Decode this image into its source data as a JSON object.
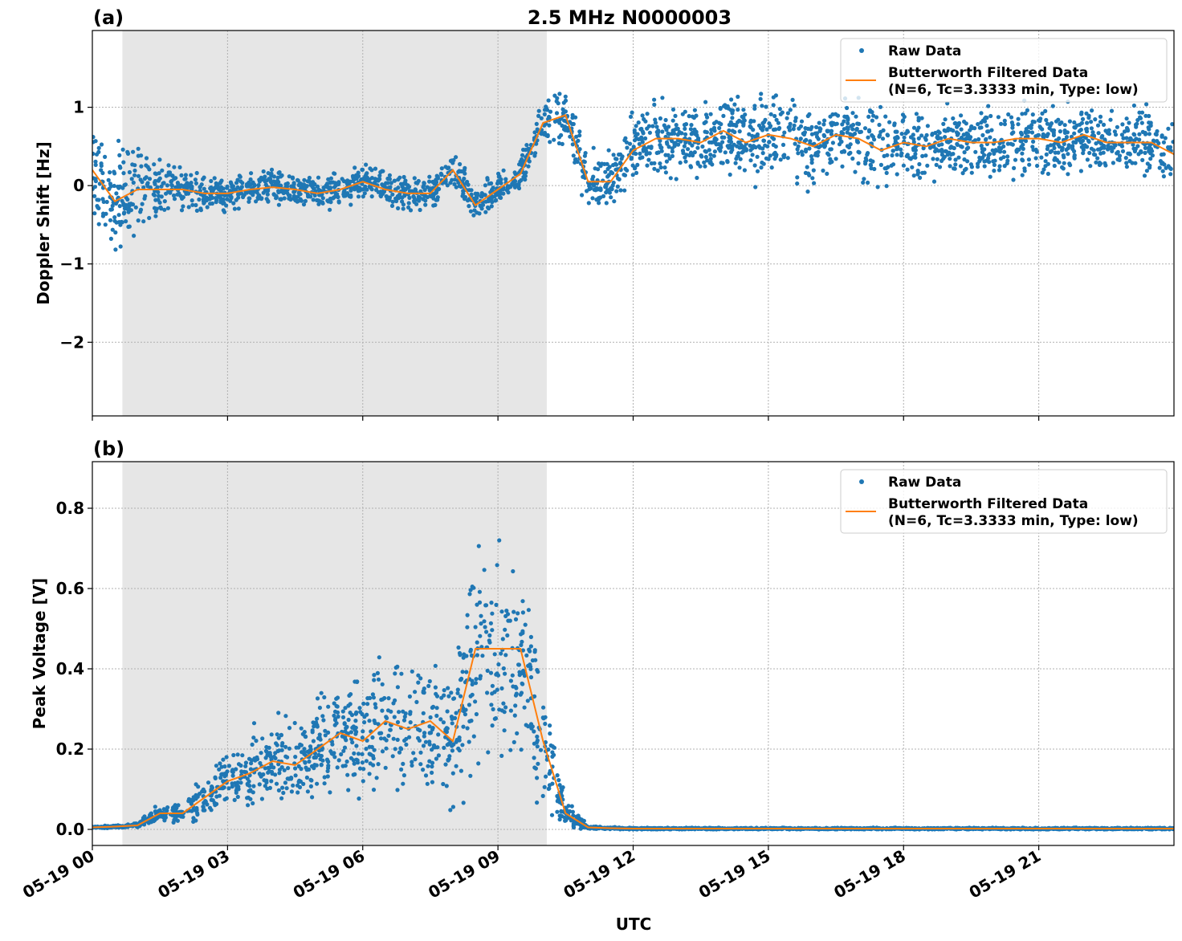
{
  "title": "2.5 MHz N0000003",
  "xlabel": "UTC",
  "x_tick_labels": [
    "05-19 00",
    "05-19 03",
    "05-19 06",
    "05-19 09",
    "05-19 12",
    "05-19 15",
    "05-19 18",
    "05-19 21"
  ],
  "shaded_span": [
    "05-19 00:40",
    "05-19 10:05"
  ],
  "colors": {
    "raw": "#1f77b4",
    "filtered": "#ff7f0e",
    "shade": "#e6e6e6"
  },
  "legend": {
    "raw": "Raw Data",
    "filtered_line1": "Butterworth Filtered Data",
    "filtered_line2": "(N=6, Tc=3.3333 min, Type: low)"
  },
  "chart_data": [
    {
      "panel_label": "(a)",
      "type": "scatter+line",
      "ylabel": "Doppler Shift [Hz]",
      "xlim": [
        "05-19 00:00",
        "05-20 00:00"
      ],
      "ylim": [
        -2.94,
        1.98
      ],
      "y_ticks": [
        -2,
        -1,
        0,
        1
      ],
      "y_tick_labels": [
        "−2",
        "−1",
        "0",
        "1"
      ],
      "grid": true,
      "legend_placement": "top-right",
      "hours": [
        0,
        0.5,
        1,
        1.5,
        2,
        2.5,
        3,
        3.5,
        4,
        4.5,
        5,
        5.5,
        6,
        6.5,
        7,
        7.5,
        8,
        8.5,
        9,
        9.5,
        10,
        10.5,
        11,
        11.5,
        12,
        12.5,
        13,
        13.5,
        14,
        14.5,
        15,
        15.5,
        16,
        16.5,
        17,
        17.5,
        18,
        18.5,
        19,
        19.5,
        20,
        20.5,
        21,
        21.5,
        22,
        22.5,
        23,
        23.5,
        24
      ],
      "filtered": [
        0.2,
        -0.2,
        -0.05,
        -0.05,
        -0.05,
        -0.1,
        -0.1,
        -0.05,
        -0.02,
        -0.05,
        -0.1,
        -0.05,
        0.05,
        -0.05,
        -0.1,
        -0.1,
        0.2,
        -0.25,
        -0.05,
        0.15,
        0.8,
        0.9,
        0.05,
        0.05,
        0.45,
        0.6,
        0.6,
        0.55,
        0.7,
        0.55,
        0.65,
        0.6,
        0.5,
        0.65,
        0.6,
        0.45,
        0.55,
        0.5,
        0.6,
        0.55,
        0.55,
        0.6,
        0.6,
        0.55,
        0.65,
        0.55,
        0.55,
        0.55,
        0.4
      ],
      "raw_spread": [
        0.9,
        0.9,
        1.1,
        0.6,
        0.35,
        0.3,
        0.3,
        0.3,
        0.3,
        0.3,
        0.3,
        0.3,
        0.3,
        0.3,
        0.3,
        0.3,
        0.3,
        0.3,
        0.3,
        0.3,
        0.4,
        0.5,
        0.5,
        0.5,
        0.6,
        0.6,
        0.6,
        0.6,
        0.7,
        0.7,
        0.7,
        0.7,
        0.7,
        0.7,
        0.7,
        0.7,
        0.6,
        0.6,
        0.6,
        0.6,
        0.6,
        0.6,
        0.6,
        0.6,
        0.6,
        0.6,
        0.6,
        0.6,
        0.6
      ]
    },
    {
      "panel_label": "(b)",
      "type": "scatter+line",
      "ylabel": "Peak Voltage [V]",
      "xlim": [
        "05-19 00:00",
        "05-20 00:00"
      ],
      "ylim": [
        -0.04,
        0.916
      ],
      "y_ticks": [
        0,
        0.2,
        0.4,
        0.6,
        0.8
      ],
      "y_tick_labels": [
        "0.0",
        "0.2",
        "0.4",
        "0.6",
        "0.8"
      ],
      "grid": true,
      "legend_placement": "top-right",
      "hours": [
        0,
        0.5,
        1,
        1.5,
        2,
        2.5,
        3,
        3.5,
        4,
        4.5,
        5,
        5.5,
        6,
        6.5,
        7,
        7.5,
        8,
        8.5,
        9,
        9.5,
        10,
        10.5,
        11,
        11.5,
        12,
        13,
        14,
        15,
        16,
        17,
        18,
        19,
        20,
        21,
        22,
        23,
        24
      ],
      "filtered": [
        0.005,
        0.007,
        0.01,
        0.04,
        0.04,
        0.08,
        0.12,
        0.14,
        0.17,
        0.16,
        0.2,
        0.24,
        0.22,
        0.27,
        0.25,
        0.27,
        0.22,
        0.45,
        0.45,
        0.45,
        0.22,
        0.04,
        0.005,
        0.003,
        0.002,
        0.002,
        0.002,
        0.002,
        0.002,
        0.002,
        0.002,
        0.002,
        0.002,
        0.002,
        0.002,
        0.002,
        0.002
      ],
      "raw_spread": [
        0.003,
        0.004,
        0.008,
        0.03,
        0.04,
        0.07,
        0.1,
        0.12,
        0.14,
        0.15,
        0.17,
        0.2,
        0.2,
        0.22,
        0.22,
        0.24,
        0.22,
        0.35,
        0.35,
        0.35,
        0.2,
        0.05,
        0.005,
        0.003,
        0.003,
        0.003,
        0.003,
        0.003,
        0.003,
        0.003,
        0.003,
        0.003,
        0.003,
        0.003,
        0.003,
        0.003,
        0.003
      ]
    }
  ]
}
